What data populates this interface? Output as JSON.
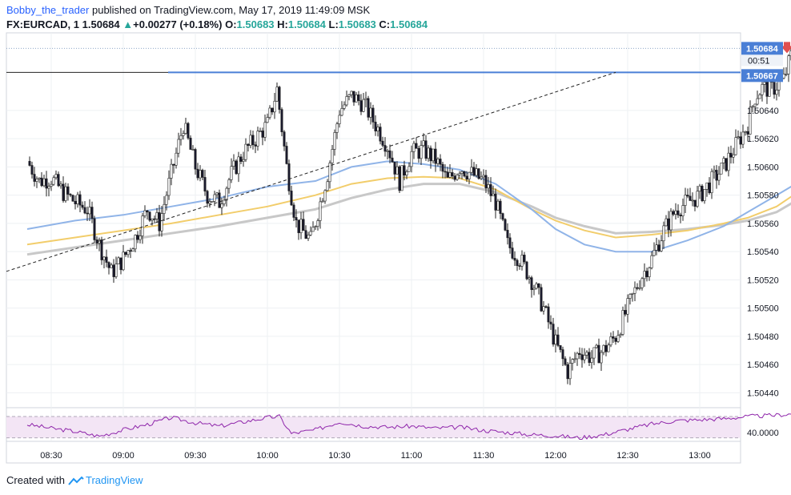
{
  "header": {
    "author": "Bobby_the_trader",
    "published": "published on TradingView.com, May 17, 2019 11:49:09 MSK",
    "symbol": "FX:EURCAD, 1",
    "last": "1.50684",
    "change_arrow": "▲",
    "change": "+0.00277 (+0.18%)",
    "o_label": "O:",
    "o_value": "1.50683",
    "h_label": "H:",
    "h_value": "1.50684",
    "l_label": "L:",
    "l_value": "1.50683",
    "c_label": "C:",
    "c_value": "1.50684"
  },
  "footer": {
    "created_with": "Created with",
    "brand": "TradingView",
    "logo_icon": "tradingview-cloud-icon"
  },
  "colors": {
    "bull": "#ffffff",
    "bear": "#1a1a2e",
    "wick": "#222222",
    "level": "#4a7fd6",
    "trend": "#222222",
    "lastline": "#8fa8c8",
    "ma_blue": "#90b4e8",
    "ma_yellow": "#f2cd6b",
    "ma_gray": "#c8c8c8",
    "rsi": "#8e24aa",
    "rsi_fill": "#f3e5f5",
    "sell_arrow": "#e05050",
    "thumbs_down": "#e53935"
  },
  "chart_data": {
    "type": "candlestick",
    "price_axis": {
      "ylim": [
        1.5043,
        1.50695
      ],
      "ticks": [
        "1.50440",
        "1.50460",
        "1.50480",
        "1.50500",
        "1.50520",
        "1.50540",
        "1.50560",
        "1.50580",
        "1.50600",
        "1.50620",
        "1.50640"
      ],
      "last_price_label": "1.50684",
      "countdown": "00:51",
      "level_label": "1.50667"
    },
    "time_axis": {
      "labels": [
        "08:30",
        "09:00",
        "09:30",
        "10:00",
        "10:30",
        "11:00",
        "11:30",
        "12:00",
        "12:30",
        "13:00"
      ]
    },
    "close_path": [
      [
        0,
        1.50604
      ],
      [
        5,
        1.5059
      ],
      [
        10,
        1.50592
      ],
      [
        15,
        1.50582
      ],
      [
        20,
        1.50575
      ],
      [
        25,
        1.5057
      ],
      [
        30,
        1.50545
      ],
      [
        35,
        1.50525
      ],
      [
        40,
        1.50535
      ],
      [
        45,
        1.5055
      ],
      [
        50,
        1.5057
      ],
      [
        55,
        1.5056
      ],
      [
        60,
        1.50595
      ],
      [
        65,
        1.5063
      ],
      [
        70,
        1.506
      ],
      [
        75,
        1.5058
      ],
      [
        80,
        1.50575
      ],
      [
        85,
        1.50595
      ],
      [
        90,
        1.5061
      ],
      [
        95,
        1.5062
      ],
      [
        100,
        1.5063
      ],
      [
        104,
        1.50655
      ],
      [
        108,
        1.506
      ],
      [
        112,
        1.5056
      ],
      [
        118,
        1.50548
      ],
      [
        125,
        1.50595
      ],
      [
        130,
        1.5064
      ],
      [
        135,
        1.5065
      ],
      [
        140,
        1.50645
      ],
      [
        145,
        1.5063
      ],
      [
        150,
        1.50615
      ],
      [
        155,
        1.5059
      ],
      [
        160,
        1.5061
      ],
      [
        165,
        1.50612
      ],
      [
        170,
        1.50605
      ],
      [
        175,
        1.5059
      ],
      [
        180,
        1.506
      ],
      [
        185,
        1.50595
      ],
      [
        190,
        1.5059
      ],
      [
        195,
        1.50575
      ],
      [
        200,
        1.50545
      ],
      [
        205,
        1.50535
      ],
      [
        210,
        1.5052
      ],
      [
        215,
        1.505
      ],
      [
        220,
        1.50475
      ],
      [
        225,
        1.50455
      ],
      [
        230,
        1.5047
      ],
      [
        235,
        1.50465
      ],
      [
        240,
        1.5047
      ],
      [
        245,
        1.5048
      ],
      [
        250,
        1.505
      ],
      [
        255,
        1.5052
      ],
      [
        260,
        1.50535
      ],
      [
        265,
        1.50555
      ],
      [
        270,
        1.5057
      ],
      [
        275,
        1.50575
      ],
      [
        280,
        1.5058
      ],
      [
        285,
        1.5059
      ],
      [
        290,
        1.506
      ],
      [
        295,
        1.50615
      ],
      [
        300,
        1.5063
      ],
      [
        303,
        1.5065
      ],
      [
        306,
        1.50656
      ],
      [
        310,
        1.50655
      ],
      [
        315,
        1.50662
      ],
      [
        319,
        1.50684
      ]
    ],
    "ma_blue": [
      [
        0,
        1.50556
      ],
      [
        20,
        1.50562
      ],
      [
        40,
        1.50566
      ],
      [
        60,
        1.50572
      ],
      [
        80,
        1.50578
      ],
      [
        100,
        1.50586
      ],
      [
        120,
        1.5059
      ],
      [
        135,
        1.506
      ],
      [
        150,
        1.50604
      ],
      [
        165,
        1.50602
      ],
      [
        180,
        1.50598
      ],
      [
        195,
        1.50588
      ],
      [
        210,
        1.5057
      ],
      [
        220,
        1.50556
      ],
      [
        232,
        1.50545
      ],
      [
        245,
        1.5054
      ],
      [
        260,
        1.5054
      ],
      [
        275,
        1.50548
      ],
      [
        290,
        1.50558
      ],
      [
        300,
        1.50568
      ],
      [
        312,
        1.5058
      ],
      [
        319,
        1.50587
      ]
    ],
    "ma_yellow": [
      [
        0,
        1.50545
      ],
      [
        20,
        1.5055
      ],
      [
        40,
        1.50555
      ],
      [
        60,
        1.5056
      ],
      [
        80,
        1.50566
      ],
      [
        100,
        1.50572
      ],
      [
        120,
        1.5058
      ],
      [
        135,
        1.50588
      ],
      [
        150,
        1.50592
      ],
      [
        165,
        1.50593
      ],
      [
        180,
        1.50592
      ],
      [
        195,
        1.50584
      ],
      [
        210,
        1.5057
      ],
      [
        220,
        1.50562
      ],
      [
        232,
        1.50555
      ],
      [
        245,
        1.5055
      ],
      [
        260,
        1.50552
      ],
      [
        275,
        1.50555
      ],
      [
        290,
        1.5056
      ],
      [
        300,
        1.50564
      ],
      [
        312,
        1.50572
      ],
      [
        319,
        1.5058
      ]
    ],
    "ma_gray": [
      [
        0,
        1.50538
      ],
      [
        20,
        1.50543
      ],
      [
        40,
        1.50548
      ],
      [
        60,
        1.50553
      ],
      [
        80,
        1.50558
      ],
      [
        100,
        1.50564
      ],
      [
        120,
        1.5057
      ],
      [
        135,
        1.50578
      ],
      [
        150,
        1.50584
      ],
      [
        165,
        1.50588
      ],
      [
        180,
        1.50588
      ],
      [
        195,
        1.50582
      ],
      [
        210,
        1.50572
      ],
      [
        220,
        1.50564
      ],
      [
        232,
        1.50558
      ],
      [
        245,
        1.50553
      ],
      [
        260,
        1.50554
      ],
      [
        275,
        1.50556
      ],
      [
        290,
        1.50559
      ],
      [
        300,
        1.50562
      ],
      [
        312,
        1.50568
      ],
      [
        319,
        1.50575
      ]
    ],
    "level": 1.50667,
    "trendline": {
      "x_from_time": "08:20",
      "y_from": 1.50526,
      "x_to_time": "12:25",
      "y_to": 1.50667
    },
    "rsi": {
      "level_label": "40.0000",
      "ylim": [
        25,
        85
      ],
      "upper_band": 70,
      "lower_band": 30,
      "series": [
        [
          0,
          55
        ],
        [
          10,
          48
        ],
        [
          20,
          42
        ],
        [
          30,
          33
        ],
        [
          40,
          45
        ],
        [
          50,
          55
        ],
        [
          60,
          68
        ],
        [
          70,
          58
        ],
        [
          80,
          52
        ],
        [
          90,
          60
        ],
        [
          100,
          68
        ],
        [
          105,
          70
        ],
        [
          110,
          38
        ],
        [
          120,
          45
        ],
        [
          130,
          60
        ],
        [
          140,
          52
        ],
        [
          150,
          50
        ],
        [
          160,
          52
        ],
        [
          170,
          48
        ],
        [
          180,
          50
        ],
        [
          190,
          44
        ],
        [
          200,
          40
        ],
        [
          210,
          36
        ],
        [
          220,
          34
        ],
        [
          230,
          30
        ],
        [
          240,
          36
        ],
        [
          250,
          46
        ],
        [
          260,
          56
        ],
        [
          270,
          62
        ],
        [
          280,
          64
        ],
        [
          290,
          66
        ],
        [
          300,
          70
        ],
        [
          310,
          72
        ],
        [
          319,
          75
        ]
      ]
    }
  }
}
